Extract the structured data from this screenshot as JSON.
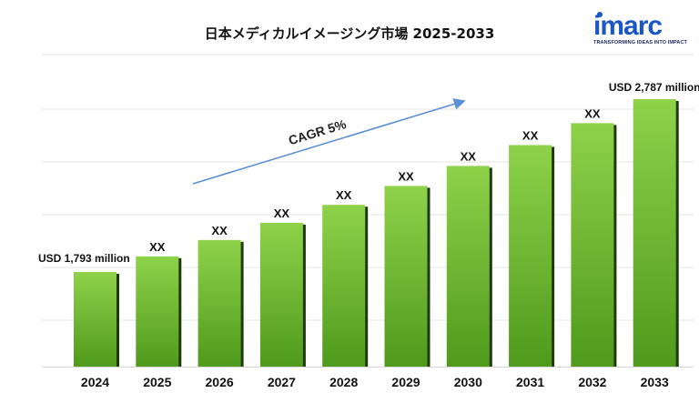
{
  "title": "日本メディカルイメージング市場 2025-2033",
  "logo": {
    "word": "imarc",
    "tagline": "TRANSFORMING IDEAS INTO IMPACT",
    "color": "#1a56c4"
  },
  "chart_data": {
    "type": "bar",
    "categories": [
      "2024",
      "2025",
      "2026",
      "2027",
      "2028",
      "2029",
      "2030",
      "2031",
      "2032",
      "2033"
    ],
    "values": [
      1793,
      1883,
      1977,
      2076,
      2179,
      2288,
      2403,
      2523,
      2649,
      2787
    ],
    "bar_labels": [
      "",
      "XX",
      "XX",
      "XX",
      "XX",
      "XX",
      "XX",
      "XX",
      "XX",
      ""
    ],
    "start_annotation": "USD  1,793 million",
    "end_annotation": "USD 2,787 million",
    "cagr_label": "CAGR 5%",
    "grid": true,
    "bar_color_top": "#8fd24a",
    "bar_color_bottom": "#4f9a1c",
    "bar_shadow": "#1f3a0a"
  }
}
